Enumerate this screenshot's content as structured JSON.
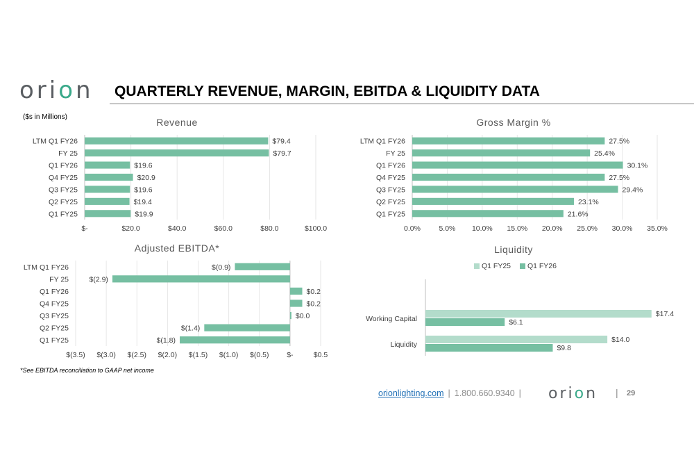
{
  "header": {
    "logo_text": "orion",
    "title": "QUARTERLY REVENUE, MARGIN, EBITDA & LIQUIDITY DATA",
    "units_note": "($s in Millions)"
  },
  "colors": {
    "bar": "#76bfa2",
    "bar_light": "#b3dccb",
    "logo_accent": "#3aa98a",
    "axis": "#bfbfbf",
    "grid": "#e6e6e6"
  },
  "chart_data": [
    {
      "type": "bar",
      "orientation": "horizontal",
      "title": "Revenue",
      "categories": [
        "LTM Q1 FY26",
        "FY 25",
        "Q1 FY26",
        "Q4 FY25",
        "Q3 FY25",
        "Q2 FY25",
        "Q1 FY25"
      ],
      "values": [
        79.4,
        79.7,
        19.6,
        20.9,
        19.6,
        19.4,
        19.9
      ],
      "data_labels": [
        "$79.4",
        "$79.7",
        "$19.6",
        "$20.9",
        "$19.6",
        "$19.4",
        "$19.9"
      ],
      "xlim": [
        0,
        100
      ],
      "xticks": [
        0,
        20,
        40,
        60,
        80,
        100
      ],
      "xtick_labels": [
        "$-",
        "$20.0",
        "$40.0",
        "$60.0",
        "$80.0",
        "$100.0"
      ],
      "grid": true
    },
    {
      "type": "bar",
      "orientation": "horizontal",
      "title": "Gross Margin %",
      "categories": [
        "LTM Q1 FY26",
        "FY 25",
        "Q1 FY26",
        "Q4 FY25",
        "Q3 FY25",
        "Q2 FY25",
        "Q1 FY25"
      ],
      "values": [
        27.5,
        25.4,
        30.1,
        27.5,
        29.4,
        23.1,
        21.6
      ],
      "data_labels": [
        "27.5%",
        "25.4%",
        "30.1%",
        "27.5%",
        "29.4%",
        "23.1%",
        "21.6%"
      ],
      "xlim": [
        0,
        35
      ],
      "xticks": [
        0,
        5,
        10,
        15,
        20,
        25,
        30,
        35
      ],
      "xtick_labels": [
        "0.0%",
        "5.0%",
        "10.0%",
        "15.0%",
        "20.0%",
        "25.0%",
        "30.0%",
        "35.0%"
      ],
      "grid": true
    },
    {
      "type": "bar",
      "orientation": "horizontal",
      "title": "Adjusted EBITDA*",
      "categories": [
        "LTM Q1 FY26",
        "FY 25",
        "Q1 FY26",
        "Q4 FY25",
        "Q3 FY25",
        "Q2 FY25",
        "Q1 FY25"
      ],
      "values": [
        -0.9,
        -2.9,
        0.2,
        0.2,
        0.0,
        -1.4,
        -1.8
      ],
      "data_labels": [
        "$(0.9)",
        "$(2.9)",
        "$0.2",
        "$0.2",
        "$0.0",
        "$(1.4)",
        "$(1.8)"
      ],
      "xlim": [
        -3.5,
        0.5
      ],
      "xticks": [
        -3.5,
        -3.0,
        -2.5,
        -2.0,
        -1.5,
        -1.0,
        -0.5,
        0,
        0.5
      ],
      "xtick_labels": [
        "$(3.5)",
        "$(3.0)",
        "$(2.5)",
        "$(2.0)",
        "$(1.5)",
        "$(1.0)",
        "$(0.5)",
        "$-",
        "$0.5"
      ],
      "grid": true
    },
    {
      "type": "bar",
      "orientation": "horizontal",
      "title": "Liquidity",
      "categories": [
        "Working Capital",
        "Liquidity"
      ],
      "series": [
        {
          "name": "Q1 FY25",
          "values": [
            17.4,
            14.0
          ],
          "data_labels": [
            "$17.4",
            "$14.0"
          ]
        },
        {
          "name": "Q1 FY26",
          "values": [
            6.1,
            9.8
          ],
          "data_labels": [
            "$6.1",
            "$9.8"
          ]
        }
      ],
      "xlim": [
        0,
        18
      ],
      "legend": "top",
      "grid": false
    }
  ],
  "footnote": "*See EBITDA reconciliation to GAAP net income",
  "footer": {
    "website": "orionlighting.com",
    "phone": "1.800.660.9340",
    "separator": "|",
    "logo_text": "orion",
    "page_number": "29"
  }
}
